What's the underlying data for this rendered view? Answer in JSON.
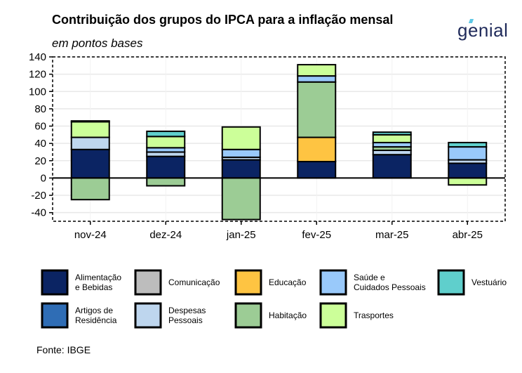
{
  "header": {
    "title": "Contribuição dos grupos do IPCA para a inflação mensal",
    "subtitle": "em pontos bases",
    "brand": "genial"
  },
  "footer": {
    "source": "Fonte: IBGE"
  },
  "chart_data": {
    "type": "bar",
    "stacked": true,
    "categories": [
      "nov-24",
      "dez-24",
      "jan-25",
      "fev-25",
      "mar-25",
      "abr-25"
    ],
    "ylim": [
      -50,
      140
    ],
    "yticks": [
      -40,
      -20,
      0,
      20,
      40,
      60,
      80,
      100,
      120,
      140
    ],
    "grid": true,
    "legend_position": "bottom",
    "series": [
      {
        "name": "Alimentação e Bebidas",
        "name_lines": [
          "Alimentação",
          "e Bebidas"
        ],
        "color": "#0b2463",
        "values": [
          33,
          25,
          21,
          19,
          27,
          17
        ]
      },
      {
        "name": "Artigos de Residência",
        "name_lines": [
          "Artigos de",
          "Residência"
        ],
        "color": "#2f6db5",
        "values": [
          0,
          0,
          0,
          0,
          0,
          0
        ]
      },
      {
        "name": "Comunicação",
        "name_lines": [
          "Comunicação"
        ],
        "color": "#bdbdbd",
        "values": [
          0,
          0,
          0,
          0,
          0,
          0
        ]
      },
      {
        "name": "Despesas Pessoais",
        "name_lines": [
          "Despesas",
          "Pessoais"
        ],
        "color": "#bed6ee",
        "values": [
          14,
          5,
          3,
          0,
          5,
          4
        ]
      },
      {
        "name": "Educação",
        "name_lines": [
          "Educação"
        ],
        "color": "#fec442",
        "values": [
          0,
          0,
          0,
          28,
          0,
          0
        ]
      },
      {
        "name": "Habitação",
        "name_lines": [
          "Habitação"
        ],
        "color": "#9ccc95",
        "values": [
          -25,
          -9,
          -48,
          64,
          4,
          0
        ]
      },
      {
        "name": "Saúde e Cuidados Pessoais",
        "name_lines": [
          "Saúde e",
          "Cuidados Pessoais"
        ],
        "color": "#99c9fa",
        "values": [
          0,
          5,
          9,
          7,
          5,
          15
        ]
      },
      {
        "name": "Trasportes",
        "name_lines": [
          "Trasportes"
        ],
        "color": "#ccff99",
        "values": [
          18,
          13,
          26,
          13,
          9,
          -8
        ]
      },
      {
        "name": "Vestuário",
        "name_lines": [
          "Vestuário"
        ],
        "color": "#5fcfcc",
        "values": [
          1,
          6,
          0,
          0,
          3,
          5
        ]
      }
    ]
  },
  "legend_layout": [
    [
      "Alimentação e Bebidas",
      "Comunicação",
      "Educação",
      "Saúde e Cuidados Pessoais",
      "Vestuário"
    ],
    [
      "Artigos de Residência",
      "Despesas Pessoais",
      "Habitação",
      "Trasportes"
    ]
  ]
}
